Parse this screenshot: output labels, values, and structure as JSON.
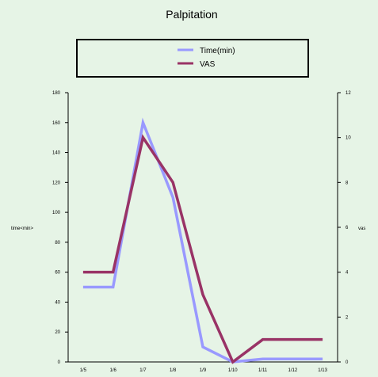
{
  "chart_data": {
    "type": "line",
    "title": "Palpitation",
    "xlabel": "",
    "ylabel": "time<min>",
    "y2label": "vas",
    "categories": [
      "1/5",
      "1/6",
      "1/7",
      "1/8",
      "1/9",
      "1/10",
      "1/11",
      "1/12",
      "1/13"
    ],
    "ylim": [
      0,
      180
    ],
    "yticks": [
      0,
      20,
      40,
      60,
      80,
      100,
      120,
      140,
      160,
      180
    ],
    "y2lim": [
      0,
      12
    ],
    "y2ticks": [
      0,
      2,
      4,
      6,
      8,
      10,
      12
    ],
    "legend_position": "top",
    "grid": false,
    "series": [
      {
        "name": "Time(min)",
        "axis": "left",
        "color": "#9999ff",
        "values": [
          50,
          50,
          160,
          110,
          10,
          0,
          2,
          2,
          2
        ]
      },
      {
        "name": "VAS",
        "axis": "right",
        "color": "#993366",
        "values": [
          4,
          4,
          10,
          8,
          3,
          0,
          1,
          1,
          1
        ]
      }
    ]
  }
}
